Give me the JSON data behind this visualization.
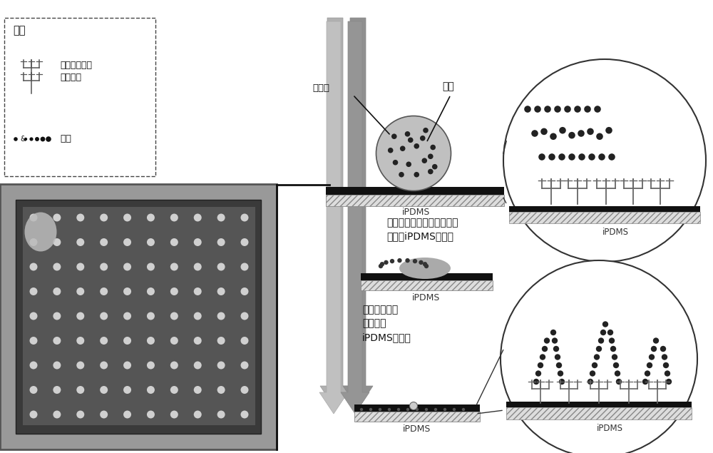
{
  "bg_color": "#ffffff",
  "legend_title": "图例",
  "legend_item1": "聚乙二醇甲基\n丙烯酸酯",
  "legend_item2": "多肽",
  "text_buffersol": "缓冲液",
  "text_polypeptide": "多肽",
  "text_ipdms1": "iPDMS",
  "text_ipdms2": "iPDMS",
  "text_ipdms3": "iPDMS",
  "text_ipdms4": "iPDMS",
  "text_step1": "点样缓冲液蒸发，多肽与基\n底膜（iPDMS）反应",
  "text_step2": "多肽通过化学\n键固定于\niPDMS膜表面",
  "arrow_gray": "#aaaaaa",
  "arrow_dark_gray": "#888888",
  "black": "#111111",
  "dark_gray": "#333333",
  "mid_gray": "#888888",
  "light_gray": "#cccccc",
  "dot_color": "#222222",
  "surface_color": "#111111",
  "hatch_color": "#888888",
  "circle_bg": "#ffffff",
  "drop_fill": "#bbbbbb",
  "drop_edge": "#555555"
}
